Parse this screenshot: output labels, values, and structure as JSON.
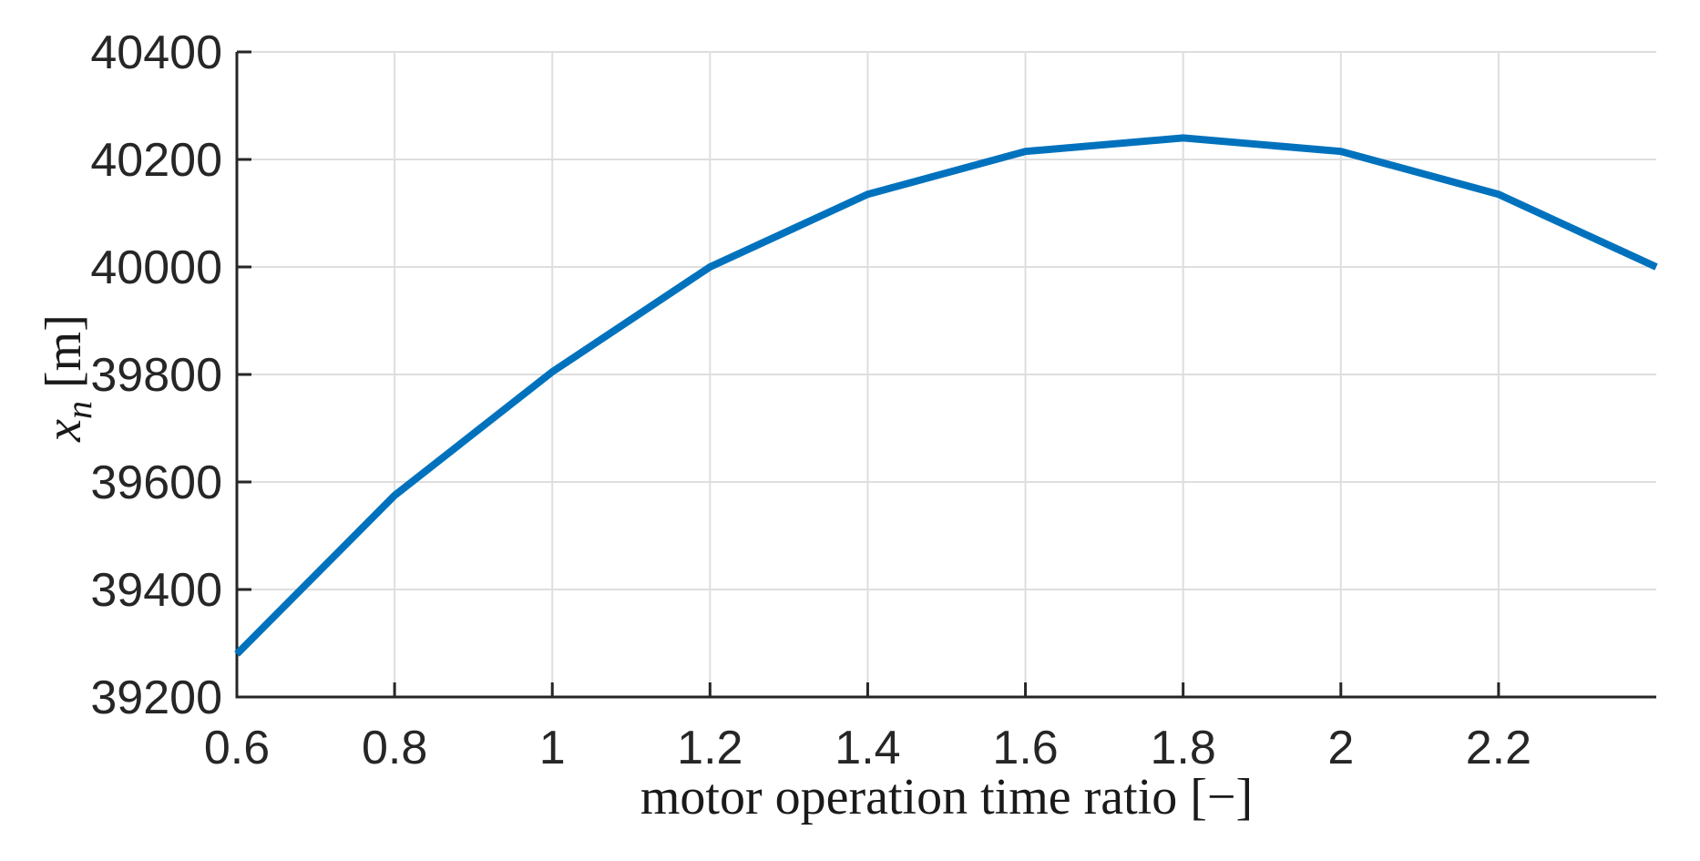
{
  "chart_data": {
    "type": "line",
    "title": "",
    "xlabel": "motor operation time ratio [−]",
    "ylabel": "x_n [m]",
    "ylabel_parts": {
      "variable": "x",
      "subscript": "n",
      "unit": "[m]"
    },
    "x": [
      0.6,
      0.8,
      1.0,
      1.2,
      1.4,
      1.6,
      1.8,
      2.0,
      2.2,
      2.4
    ],
    "y": [
      39280,
      39575,
      39805,
      40000,
      40135,
      40215,
      40240,
      40215,
      40135,
      40000
    ],
    "series_name": "x_n",
    "xlim": [
      0.6,
      2.4
    ],
    "ylim": [
      39200,
      40400
    ],
    "xticks": {
      "values": [
        0.6,
        0.8,
        1.0,
        1.2,
        1.4,
        1.6,
        1.8,
        2.0,
        2.2
      ],
      "labels": [
        "0.6",
        "0.8",
        "1",
        "1.2",
        "1.4",
        "1.6",
        "1.8",
        "2",
        "2.2"
      ]
    },
    "yticks": {
      "values": [
        39200,
        39400,
        39600,
        39800,
        40000,
        40200,
        40400
      ],
      "labels": [
        "39200",
        "39400",
        "39600",
        "39800",
        "40000",
        "40200",
        "40400"
      ]
    },
    "grid": true,
    "legend": null,
    "colors": {
      "line": "#0072BD",
      "grid": "#DEDEDE",
      "axis": "#262626",
      "tick_text": "#262626",
      "label_text": "#1a1a1a",
      "background": "#FFFFFF"
    }
  }
}
